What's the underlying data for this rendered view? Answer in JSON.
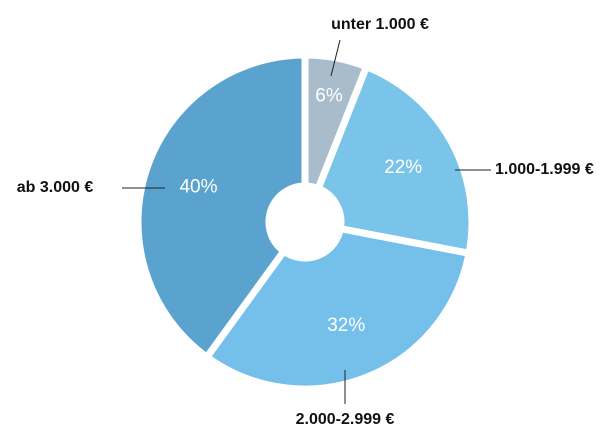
{
  "chart_data": {
    "type": "pie",
    "categories": [
      "unter 1.000 €",
      "1.000-1.999 €",
      "2.000-2.999 €",
      "ab 3.000 €"
    ],
    "values": [
      6,
      22,
      32,
      40
    ],
    "value_labels": [
      "6%",
      "22%",
      "32%",
      "40%"
    ],
    "colors": [
      "#a9bccb",
      "#7ac4ea",
      "#74c0ea",
      "#5aa3cf"
    ]
  }
}
